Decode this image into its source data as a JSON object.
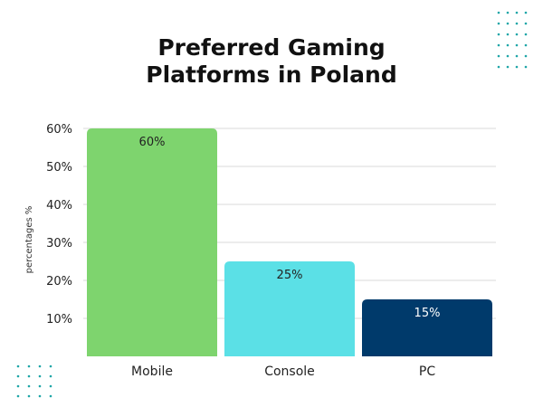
{
  "chart_data": {
    "type": "bar",
    "title": "Preferred Gaming Platforms in Poland",
    "ylabel": "percentages %",
    "xlabel": "",
    "categories": [
      "Mobile",
      "Console",
      "PC"
    ],
    "values": [
      60,
      25,
      15
    ],
    "data_labels": [
      "60%",
      "25%",
      "15%"
    ],
    "yticks": [
      "10%",
      "20%",
      "30%",
      "40%",
      "50%",
      "60%"
    ],
    "ylim": [
      0,
      60
    ],
    "grid": true,
    "colors": [
      "#7ED46E",
      "#5BE0E6",
      "#003A6B"
    ],
    "label_colors": [
      "#222222",
      "#222222",
      "#ffffff"
    ],
    "dot_color": "#1FA6A8"
  }
}
